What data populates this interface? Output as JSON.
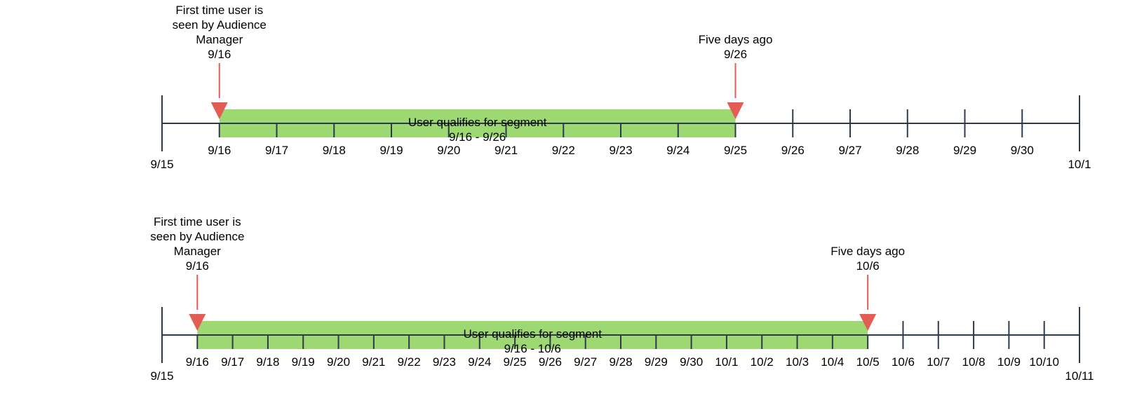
{
  "colors": {
    "axis": "#2e3a4b",
    "bar": "#9ed872",
    "arrow": "#e35d54",
    "text": "#000000"
  },
  "timelines": [
    {
      "start_label": "9/15",
      "end_label": "10/1",
      "tick_labels": [
        "9/16",
        "9/17",
        "9/18",
        "9/19",
        "9/20",
        "9/21",
        "9/22",
        "9/23",
        "9/24",
        "9/25",
        "9/26",
        "9/27",
        "9/28",
        "9/29",
        "9/30"
      ],
      "bar": {
        "title": "User qualifies for segment",
        "range": "9/16 - 9/26"
      },
      "first_seen": {
        "lines": [
          "First time user is",
          "seen by Audience",
          "Manager"
        ],
        "date": "9/16"
      },
      "five_days": {
        "label": "Five days ago",
        "date": "9/26"
      }
    },
    {
      "start_label": "9/15",
      "end_label": "10/11",
      "tick_labels": [
        "9/16",
        "9/17",
        "9/18",
        "9/19",
        "9/20",
        "9/21",
        "9/22",
        "9/23",
        "9/24",
        "9/25",
        "9/26",
        "9/27",
        "9/28",
        "9/29",
        "9/30",
        "10/1",
        "10/2",
        "10/3",
        "10/4",
        "10/5",
        "10/6",
        "10/7",
        "10/8",
        "10/9",
        "10/10"
      ],
      "bar": {
        "title": "User qualifies for segment",
        "range": "9/16 - 10/6"
      },
      "first_seen": {
        "lines": [
          "First time user is",
          "seen by Audience",
          "Manager"
        ],
        "date": "9/16"
      },
      "five_days": {
        "label": "Five days ago",
        "date": "10/6"
      }
    }
  ]
}
